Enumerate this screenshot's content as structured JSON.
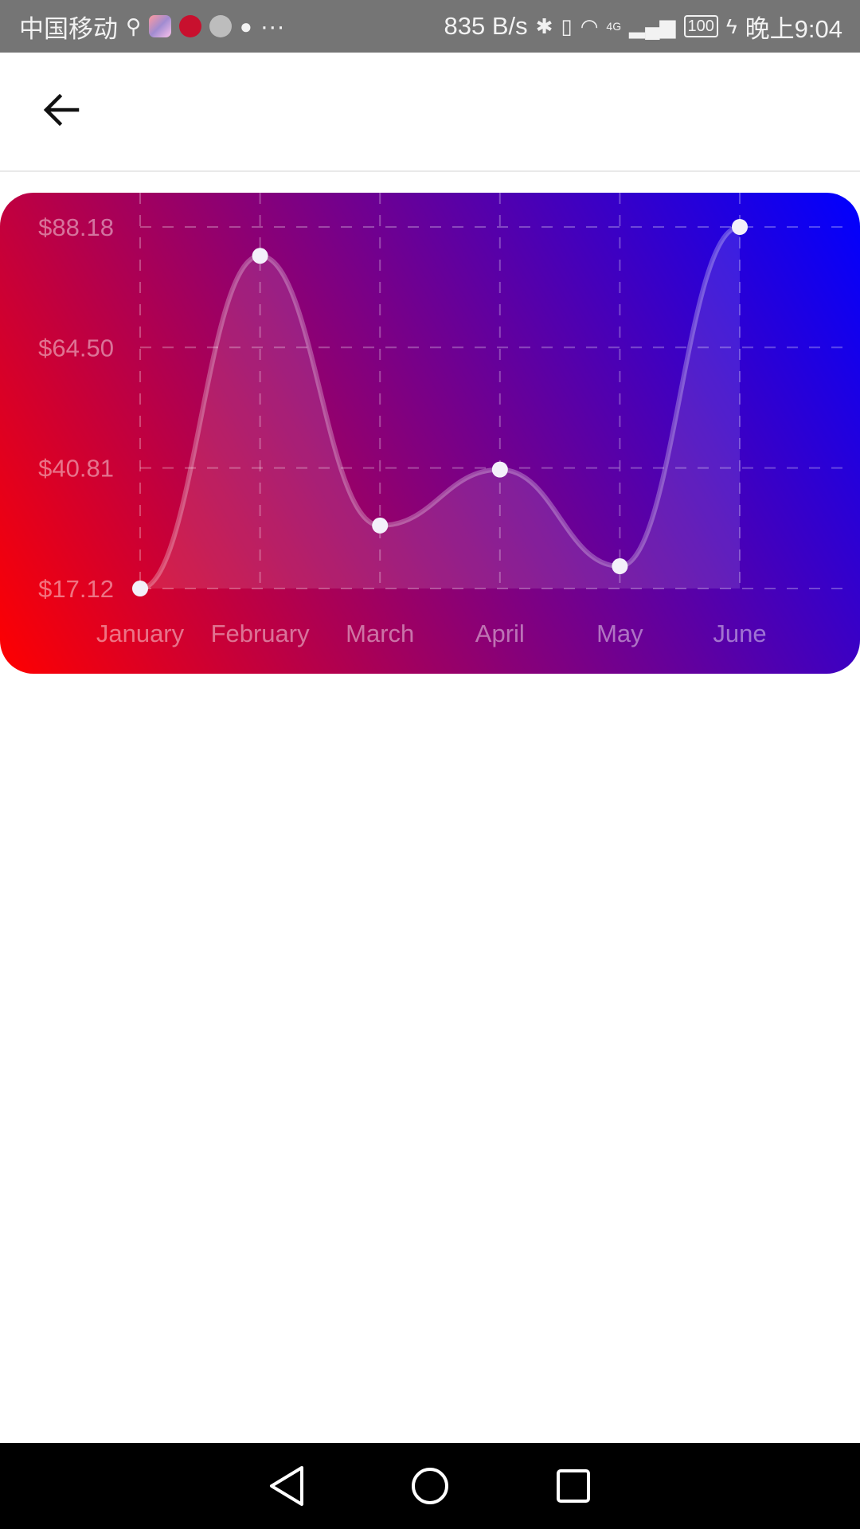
{
  "status_bar": {
    "carrier": "中国移动",
    "more": "···",
    "net_speed": "835 B/s",
    "network": "4G",
    "battery": "100",
    "time": "晚上9:04",
    "icons": [
      "usb-icon",
      "app-icon",
      "app-icon",
      "app-icon",
      "chat-icon",
      "bluetooth-icon",
      "vibrate-icon",
      "wifi-icon",
      "signal-icon",
      "battery-icon",
      "charging-icon"
    ]
  },
  "app_bar": {
    "back_icon": "arrow-left-icon"
  },
  "chart_data": {
    "type": "line",
    "categories": [
      "January",
      "February",
      "March",
      "April",
      "May",
      "June"
    ],
    "series": [
      {
        "values": [
          17.12,
          82.5,
          29.5,
          40.5,
          21.5,
          88.18
        ]
      }
    ],
    "y_ticks": [
      "$17.12",
      "$40.81",
      "$64.50",
      "$88.18"
    ],
    "ylim": [
      17.12,
      88.18
    ],
    "grid": true,
    "grid_style": "dashed",
    "smooth": true,
    "colors": {
      "gradient_start": "#ff0000",
      "gradient_mid": "#8a0076",
      "gradient_end": "#0000ff"
    }
  },
  "nav_bar": {
    "icons": [
      "back-triangle-icon",
      "home-circle-icon",
      "recents-square-icon"
    ]
  }
}
